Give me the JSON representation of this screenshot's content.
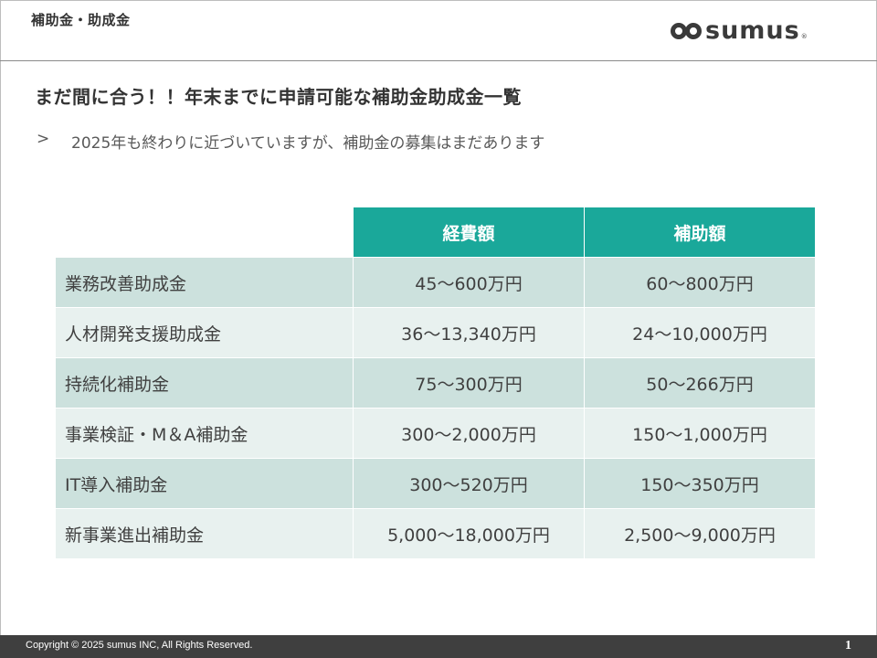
{
  "header": {
    "section_label": "補助金・助成金",
    "logo_text": "sumus",
    "logo_reg": "®"
  },
  "title": "まだ間に合う！！年末までに申請可能な補助金助成金一覧",
  "subtitle": {
    "marker": ">",
    "text": "2025年も終わりに近づいていますが、補助金の募集はまだあります"
  },
  "table": {
    "headers": [
      "経費額",
      "補助額"
    ],
    "rows": [
      {
        "name": "業務改善助成金",
        "cost": "45～600万円",
        "subsidy": "60～800万円"
      },
      {
        "name": "人材開発支援助成金",
        "cost": "36～13,340万円",
        "subsidy": "24～10,000万円"
      },
      {
        "name": "持続化補助金",
        "cost": "75～300万円",
        "subsidy": "50～266万円"
      },
      {
        "name": "事業検証・M＆A補助金",
        "cost": "300～2,000万円",
        "subsidy": "150～1,000万円"
      },
      {
        "name": "IT導入補助金",
        "cost": "300～520万円",
        "subsidy": "150～350万円"
      },
      {
        "name": "新事業進出補助金",
        "cost": "5,000～18,000万円",
        "subsidy": "2,500～9,000万円"
      }
    ]
  },
  "footer": {
    "copyright": "Copyright © 2025 sumus INC, All Rights Reserved.",
    "page_number": "1"
  },
  "colors": {
    "header_teal": "#1aa89a",
    "row_dark": "#cce1dd",
    "row_light": "#e8f1ef",
    "footer_bg": "#3f3f3f"
  }
}
